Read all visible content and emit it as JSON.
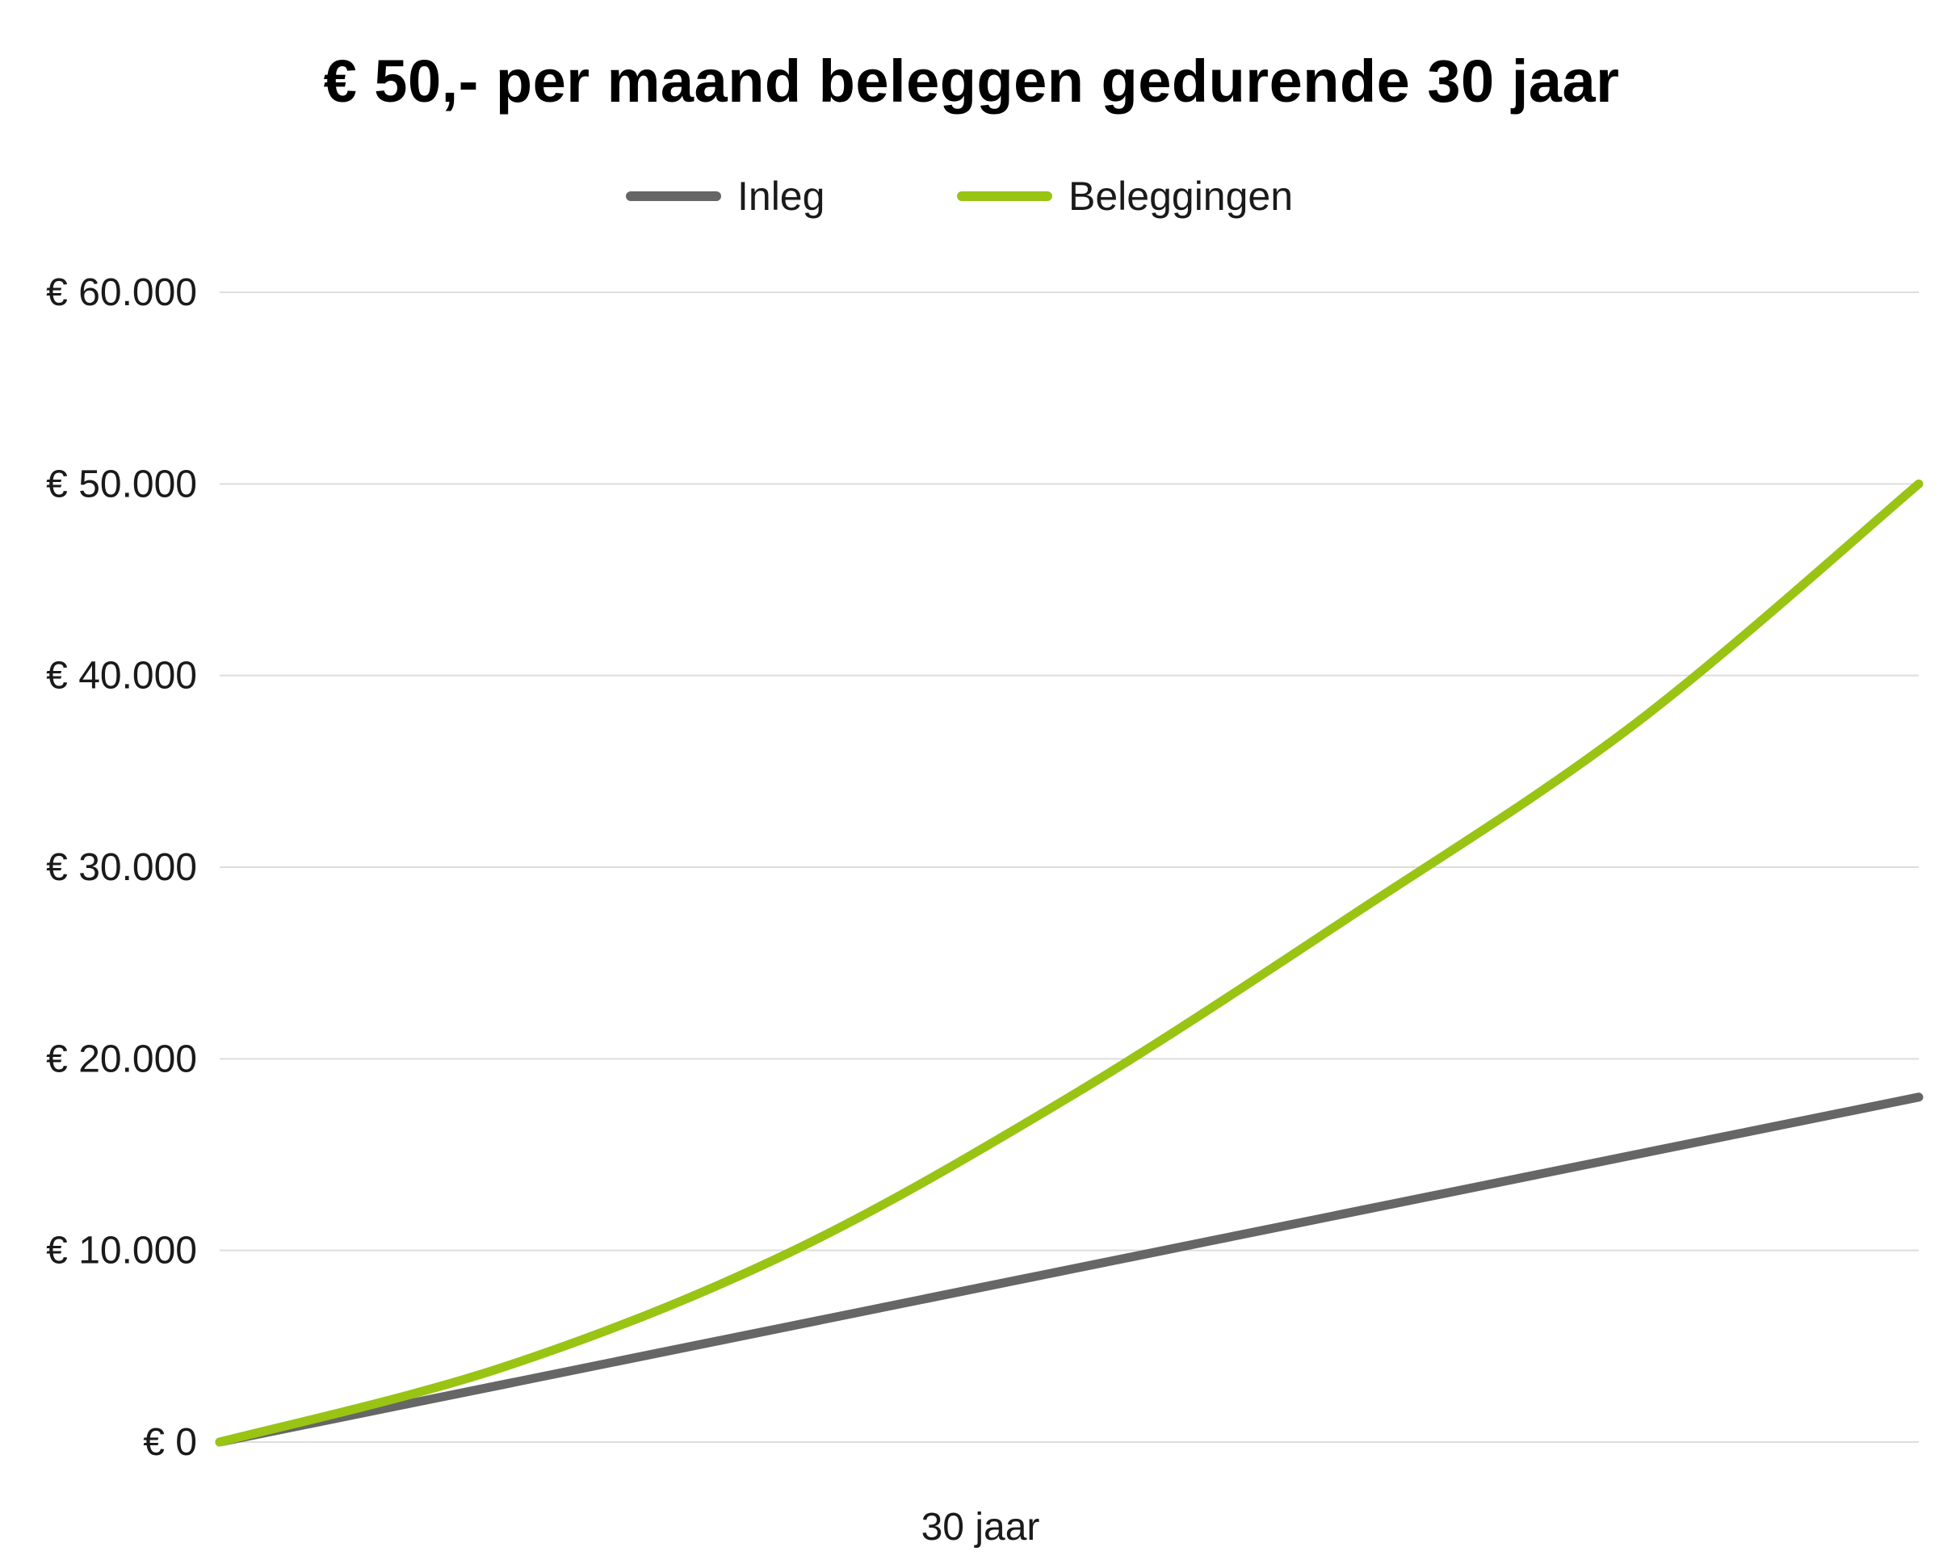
{
  "chart_data": {
    "type": "line",
    "title": "€ 50,- per maand beleggen gedurende 30 jaar",
    "xlabel": "30 jaar",
    "ylabel": "",
    "x": [
      0,
      5,
      10,
      15,
      20,
      25,
      30
    ],
    "ylim": [
      0,
      60000
    ],
    "y_ticks": [
      0,
      10000,
      20000,
      30000,
      40000,
      50000,
      60000
    ],
    "y_tick_labels": [
      "€ 0",
      "€ 10.000",
      "€ 20.000",
      "€ 30.000",
      "€ 40.000",
      "€ 50.000",
      "€ 60.000"
    ],
    "grid": true,
    "legend_position": "top-center",
    "series": [
      {
        "name": "Inleg",
        "color": "#666666",
        "values": [
          0,
          3000,
          6000,
          9000,
          12000,
          15000,
          18000
        ]
      },
      {
        "name": "Beleggingen",
        "color": "#99c414",
        "values": [
          0,
          3900,
          9800,
          18000,
          27500,
          37500,
          50000
        ]
      }
    ]
  },
  "legend": {
    "items": [
      {
        "label": "Inleg",
        "color": "#666666"
      },
      {
        "label": "Beleggingen",
        "color": "#99c414"
      }
    ]
  },
  "colors": {
    "grid": "#dddddd",
    "text": "#1a1a1a"
  }
}
